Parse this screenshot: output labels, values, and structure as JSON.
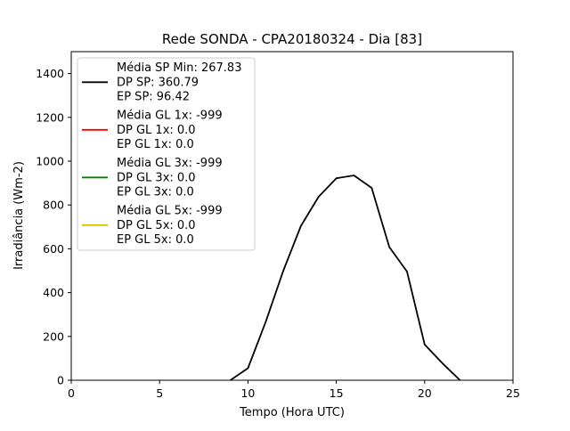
{
  "chart_data": {
    "type": "line",
    "title": "Rede SONDA - CPA20180324 - Dia [83]",
    "xlabel": "Tempo (Hora UTC)",
    "ylabel": "Irradiância (Wm-2)",
    "xlim": [
      0,
      25
    ],
    "ylim": [
      0,
      1500
    ],
    "xticks": [
      "0",
      "5",
      "10",
      "15",
      "20",
      "25"
    ],
    "yticks": [
      "0",
      "200",
      "400",
      "600",
      "800",
      "1000",
      "1200",
      "1400"
    ],
    "grid": false,
    "legend_position": "top-left",
    "series": [
      {
        "legend": [
          "Média SP Min: 267.83",
          "DP SP: 360.79",
          "EP SP: 96.42"
        ],
        "color": "#000000",
        "x": [
          9,
          10,
          11,
          12,
          13,
          14,
          15,
          16,
          17,
          18,
          19,
          20,
          21,
          22
        ],
        "y": [
          0,
          55,
          265,
          500,
          705,
          838,
          922,
          935,
          878,
          608,
          496,
          163,
          78,
          0
        ]
      },
      {
        "legend": [
          "Média GL 1x: -999",
          "DP GL 1x: 0.0",
          "EP GL 1x: 0.0"
        ],
        "color": "#ff0000",
        "x": [],
        "y": []
      },
      {
        "legend": [
          "Média GL 3x: -999",
          "DP GL 3x: 0.0",
          "EP GL 3x: 0.0"
        ],
        "color": "#008000",
        "x": [],
        "y": []
      },
      {
        "legend": [
          "Média GL 5x: -999",
          "DP GL 5x: 0.0",
          "EP GL 5x: 0.0"
        ],
        "color": "#d4c200",
        "x": [],
        "y": []
      }
    ]
  }
}
